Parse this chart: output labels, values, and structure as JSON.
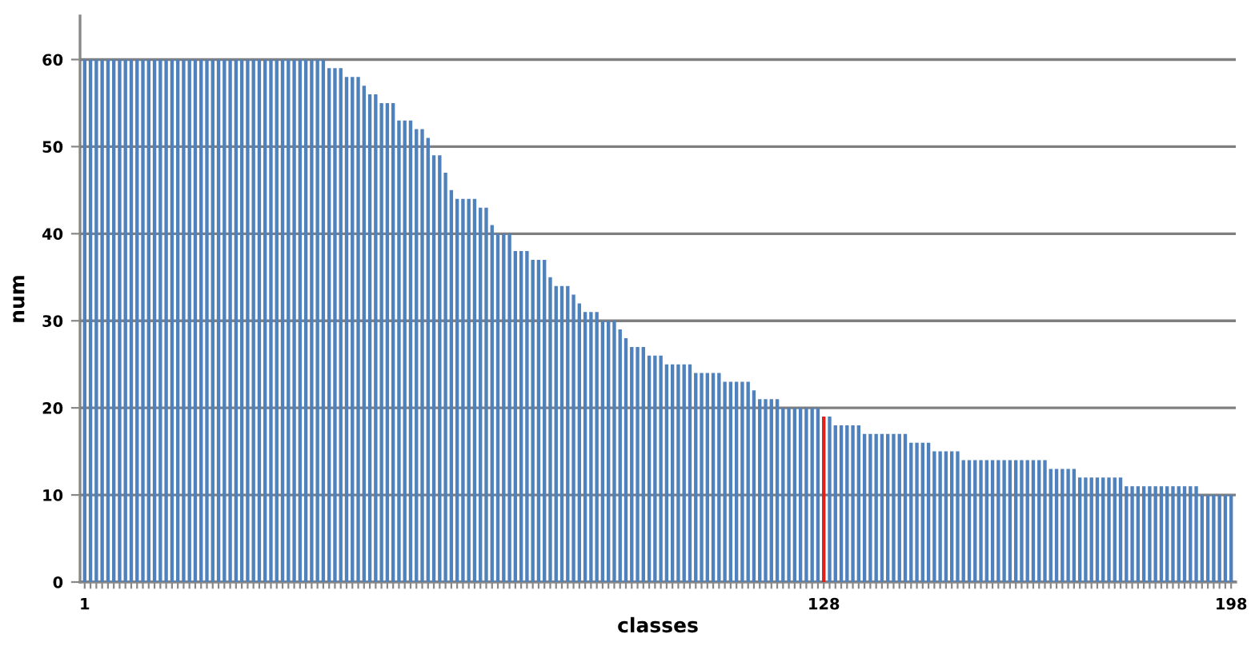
{
  "chart_data": {
    "type": "bar",
    "xlabel": "classes",
    "ylabel": "num",
    "categories": [
      "1",
      null,
      null,
      null,
      null,
      null,
      null,
      null,
      null,
      null,
      null,
      null,
      null,
      null,
      null,
      null,
      null,
      null,
      null,
      null,
      null,
      null,
      null,
      null,
      null,
      null,
      null,
      null,
      null,
      null,
      null,
      null,
      null,
      null,
      null,
      null,
      null,
      null,
      null,
      null,
      null,
      null,
      null,
      null,
      null,
      null,
      null,
      null,
      null,
      null,
      null,
      null,
      null,
      null,
      null,
      null,
      null,
      null,
      null,
      null,
      null,
      null,
      null,
      null,
      null,
      null,
      null,
      null,
      null,
      null,
      null,
      null,
      null,
      null,
      null,
      null,
      null,
      null,
      null,
      null,
      null,
      null,
      null,
      null,
      null,
      null,
      null,
      null,
      null,
      null,
      null,
      null,
      null,
      null,
      null,
      null,
      null,
      null,
      null,
      null,
      null,
      null,
      null,
      null,
      null,
      null,
      null,
      null,
      null,
      null,
      null,
      null,
      null,
      null,
      null,
      null,
      null,
      null,
      null,
      null,
      null,
      null,
      null,
      null,
      null,
      null,
      null,
      "128",
      null,
      null,
      null,
      null,
      null,
      null,
      null,
      null,
      null,
      null,
      null,
      null,
      null,
      null,
      null,
      null,
      null,
      null,
      null,
      null,
      null,
      null,
      null,
      null,
      null,
      null,
      null,
      null,
      null,
      null,
      null,
      null,
      null,
      null,
      null,
      null,
      null,
      null,
      null,
      null,
      null,
      null,
      null,
      null,
      null,
      null,
      null,
      null,
      null,
      null,
      null,
      null,
      null,
      null,
      null,
      null,
      null,
      null,
      null,
      null,
      null,
      null,
      null,
      null,
      null,
      null,
      null,
      null,
      null,
      "198"
    ],
    "values": [
      60,
      60,
      60,
      60,
      60,
      60,
      60,
      60,
      60,
      60,
      60,
      60,
      60,
      60,
      60,
      60,
      60,
      60,
      60,
      60,
      60,
      60,
      60,
      60,
      60,
      60,
      60,
      60,
      60,
      60,
      60,
      60,
      60,
      60,
      60,
      60,
      60,
      60,
      60,
      60,
      60,
      60,
      59,
      59,
      59,
      58,
      58,
      58,
      57,
      56,
      56,
      55,
      55,
      55,
      53,
      53,
      53,
      52,
      52,
      51,
      49,
      49,
      47,
      45,
      44,
      44,
      44,
      44,
      43,
      43,
      41,
      40,
      40,
      40,
      38,
      38,
      38,
      37,
      37,
      37,
      35,
      34,
      34,
      34,
      33,
      32,
      31,
      31,
      31,
      30,
      30,
      30,
      29,
      28,
      27,
      27,
      27,
      26,
      26,
      26,
      25,
      25,
      25,
      25,
      25,
      24,
      24,
      24,
      24,
      24,
      23,
      23,
      23,
      23,
      23,
      22,
      21,
      21,
      21,
      21,
      20,
      20,
      20,
      20,
      20,
      20,
      20,
      19,
      19,
      18,
      18,
      18,
      18,
      18,
      17,
      17,
      17,
      17,
      17,
      17,
      17,
      17,
      16,
      16,
      16,
      16,
      15,
      15,
      15,
      15,
      15,
      14,
      14,
      14,
      14,
      14,
      14,
      14,
      14,
      14,
      14,
      14,
      14,
      14,
      14,
      14,
      13,
      13,
      13,
      13,
      13,
      12,
      12,
      12,
      12,
      12,
      12,
      12,
      12,
      11,
      11,
      11,
      11,
      11,
      11,
      11,
      11,
      11,
      11,
      11,
      11,
      11,
      10,
      10,
      10,
      10,
      10,
      10
    ],
    "colors": [
      "#4f81bd",
      "#4f81bd",
      "#4f81bd",
      "#4f81bd",
      "#4f81bd",
      "#4f81bd",
      "#4f81bd",
      "#4f81bd",
      "#4f81bd",
      "#4f81bd",
      "#4f81bd",
      "#4f81bd",
      "#4f81bd",
      "#4f81bd",
      "#4f81bd",
      "#4f81bd",
      "#4f81bd",
      "#4f81bd",
      "#4f81bd",
      "#4f81bd",
      "#4f81bd",
      "#4f81bd",
      "#4f81bd",
      "#4f81bd",
      "#4f81bd",
      "#4f81bd",
      "#4f81bd",
      "#4f81bd",
      "#4f81bd",
      "#4f81bd",
      "#4f81bd",
      "#4f81bd",
      "#4f81bd",
      "#4f81bd",
      "#4f81bd",
      "#4f81bd",
      "#4f81bd",
      "#4f81bd",
      "#4f81bd",
      "#4f81bd",
      "#4f81bd",
      "#4f81bd",
      "#4f81bd",
      "#4f81bd",
      "#4f81bd",
      "#4f81bd",
      "#4f81bd",
      "#4f81bd",
      "#4f81bd",
      "#4f81bd",
      "#4f81bd",
      "#4f81bd",
      "#4f81bd",
      "#4f81bd",
      "#4f81bd",
      "#4f81bd",
      "#4f81bd",
      "#4f81bd",
      "#4f81bd",
      "#4f81bd",
      "#4f81bd",
      "#4f81bd",
      "#4f81bd",
      "#4f81bd",
      "#4f81bd",
      "#4f81bd",
      "#4f81bd",
      "#4f81bd",
      "#4f81bd",
      "#4f81bd",
      "#4f81bd",
      "#4f81bd",
      "#4f81bd",
      "#4f81bd",
      "#4f81bd",
      "#4f81bd",
      "#4f81bd",
      "#4f81bd",
      "#4f81bd",
      "#4f81bd",
      "#4f81bd",
      "#4f81bd",
      "#4f81bd",
      "#4f81bd",
      "#4f81bd",
      "#4f81bd",
      "#4f81bd",
      "#4f81bd",
      "#4f81bd",
      "#4f81bd",
      "#4f81bd",
      "#4f81bd",
      "#4f81bd",
      "#4f81bd",
      "#4f81bd",
      "#4f81bd",
      "#4f81bd",
      "#4f81bd",
      "#4f81bd",
      "#4f81bd",
      "#4f81bd",
      "#4f81bd",
      "#4f81bd",
      "#4f81bd",
      "#4f81bd",
      "#4f81bd",
      "#4f81bd",
      "#4f81bd",
      "#4f81bd",
      "#4f81bd",
      "#4f81bd",
      "#4f81bd",
      "#4f81bd",
      "#4f81bd",
      "#4f81bd",
      "#4f81bd",
      "#4f81bd",
      "#4f81bd",
      "#4f81bd",
      "#4f81bd",
      "#4f81bd",
      "#4f81bd",
      "#4f81bd",
      "#4f81bd",
      "#4f81bd",
      "#4f81bd",
      "#4f81bd",
      "#e0201b",
      "#4f81bd",
      "#4f81bd",
      "#4f81bd",
      "#4f81bd",
      "#4f81bd",
      "#4f81bd",
      "#4f81bd",
      "#4f81bd",
      "#4f81bd",
      "#4f81bd",
      "#4f81bd",
      "#4f81bd",
      "#4f81bd",
      "#4f81bd",
      "#4f81bd",
      "#4f81bd",
      "#4f81bd",
      "#4f81bd",
      "#4f81bd",
      "#4f81bd",
      "#4f81bd",
      "#4f81bd",
      "#4f81bd",
      "#4f81bd",
      "#4f81bd",
      "#4f81bd",
      "#4f81bd",
      "#4f81bd",
      "#4f81bd",
      "#4f81bd",
      "#4f81bd",
      "#4f81bd",
      "#4f81bd",
      "#4f81bd",
      "#4f81bd",
      "#4f81bd",
      "#4f81bd",
      "#4f81bd",
      "#4f81bd",
      "#4f81bd",
      "#4f81bd",
      "#4f81bd",
      "#4f81bd",
      "#4f81bd",
      "#4f81bd",
      "#4f81bd",
      "#4f81bd",
      "#4f81bd",
      "#4f81bd",
      "#4f81bd",
      "#4f81bd",
      "#4f81bd",
      "#4f81bd",
      "#4f81bd",
      "#4f81bd",
      "#4f81bd",
      "#4f81bd",
      "#4f81bd",
      "#4f81bd",
      "#4f81bd",
      "#4f81bd",
      "#4f81bd",
      "#4f81bd",
      "#4f81bd",
      "#4f81bd",
      "#4f81bd",
      "#4f81bd",
      "#4f81bd",
      "#4f81bd",
      "#4f81bd"
    ],
    "ylim": [
      0,
      65
    ],
    "yticks": [
      0,
      10,
      20,
      30,
      40,
      50,
      60
    ],
    "grid": "y"
  }
}
